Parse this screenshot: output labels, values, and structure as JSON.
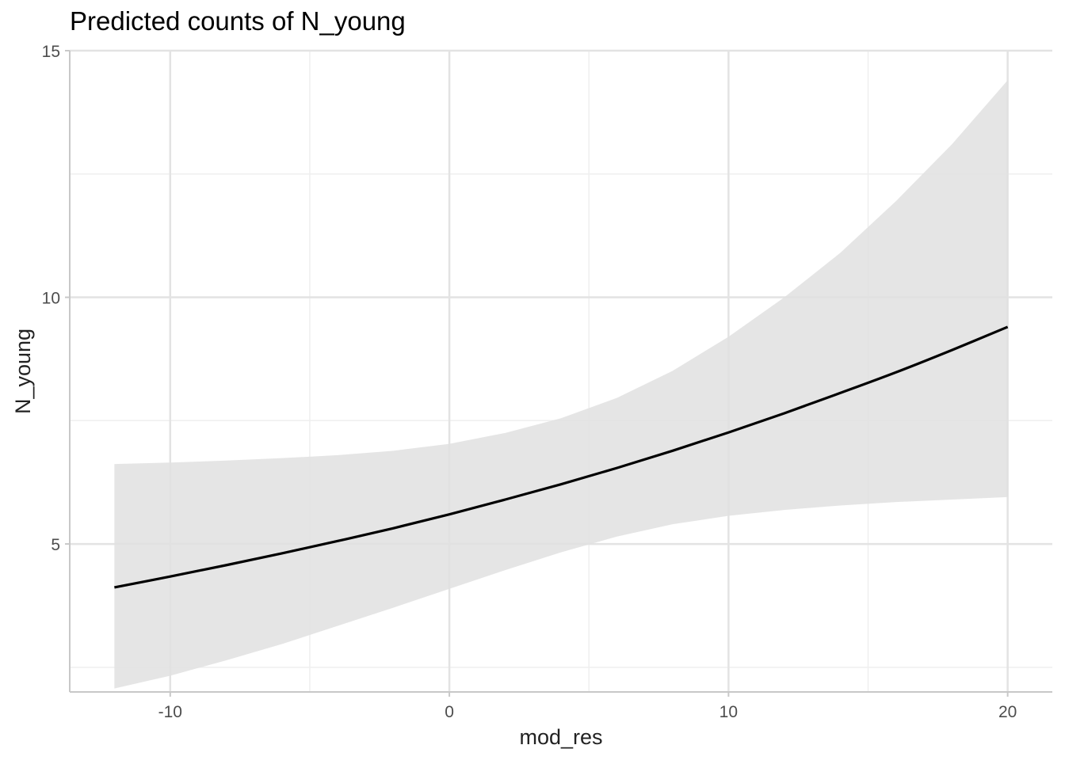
{
  "chart_data": {
    "type": "line",
    "title": "Predicted counts of N_young",
    "xlabel": "mod_res",
    "ylabel": "N_young",
    "xlim": [
      -13.6,
      21.6
    ],
    "ylim": [
      2.0,
      15.0
    ],
    "x_ticks": [
      -10,
      0,
      10,
      20
    ],
    "x_tick_labels": [
      "-10",
      "0",
      "10",
      "20"
    ],
    "y_ticks": [
      5,
      10,
      15
    ],
    "y_tick_labels": [
      "5",
      "10",
      "15"
    ],
    "x_minor_grid": [
      -5,
      5,
      15
    ],
    "y_minor_grid": [
      2.5,
      7.5,
      12.5
    ],
    "grid": true,
    "series": [
      {
        "x": [
          -12,
          -10,
          -8,
          -6,
          -4,
          -2,
          0,
          2,
          4,
          6,
          8,
          10,
          12,
          14,
          16,
          18,
          20
        ],
        "y": [
          4.12,
          4.34,
          4.57,
          4.81,
          5.06,
          5.32,
          5.6,
          5.9,
          6.21,
          6.54,
          6.89,
          7.26,
          7.65,
          8.06,
          8.48,
          8.93,
          9.4
        ],
        "ci_lower": [
          2.07,
          2.33,
          2.64,
          2.97,
          3.34,
          3.71,
          4.09,
          4.47,
          4.83,
          5.15,
          5.4,
          5.57,
          5.69,
          5.78,
          5.85,
          5.9,
          5.95
        ],
        "ci_upper": [
          6.62,
          6.65,
          6.69,
          6.74,
          6.8,
          6.89,
          7.03,
          7.25,
          7.55,
          7.96,
          8.51,
          9.2,
          10.0,
          10.9,
          11.95,
          13.1,
          14.4
        ]
      }
    ],
    "colors": {
      "line": "#000000",
      "ribbon": "#e0e0e0",
      "grid_major": "#e3e3e3",
      "grid_minor": "#efefef",
      "axis": "#c8c8c8"
    }
  }
}
